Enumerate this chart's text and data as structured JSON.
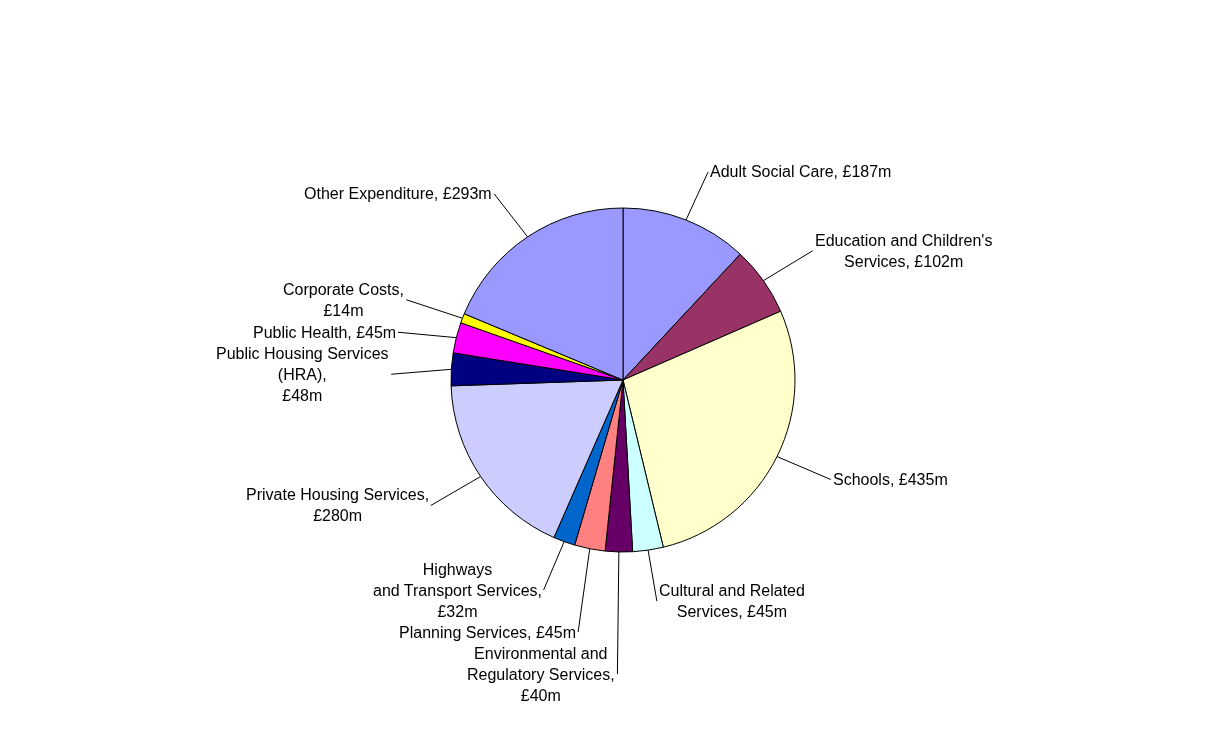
{
  "chart_data": {
    "type": "pie",
    "categories": [
      "Adult Social Care, £187m",
      "Education and Children's\nServices, £102m",
      "Schools, £435m",
      "Cultural and Related\nServices, £45m",
      "Environmental and\nRegulatory Services,\n£40m",
      "Planning Services, £45m",
      "Highways\nand Transport Services,\n£32m",
      "Private Housing Services,\n£280m",
      "Public Housing Services\n(HRA),\n£48m",
      "Public Health, £45m",
      "Corporate Costs,\n£14m",
      "Other Expenditure, £293m"
    ],
    "values": [
      187,
      102,
      435,
      45,
      40,
      45,
      32,
      280,
      48,
      45,
      14,
      293
    ],
    "colors": [
      "#9999ff",
      "#993366",
      "#ffffcc",
      "#ccffff",
      "#660066",
      "#ff8080",
      "#0066cc",
      "#ccccff",
      "#000080",
      "#ff00ff",
      "#ffff00",
      "#9999ff"
    ],
    "legend": false
  }
}
